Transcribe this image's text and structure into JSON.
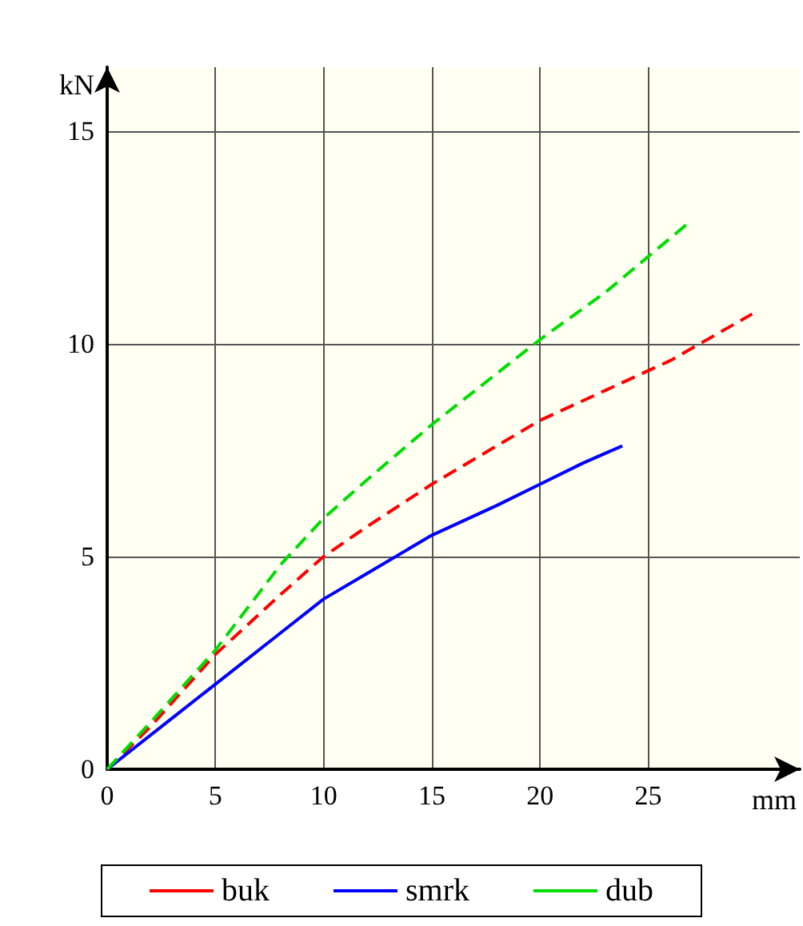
{
  "chart_data": {
    "type": "line",
    "xlabel": "mm",
    "ylabel": "kN",
    "xlim": [
      0,
      32
    ],
    "ylim": [
      0,
      16.5
    ],
    "xticks": [
      0,
      5,
      10,
      15,
      20,
      25
    ],
    "yticks": [
      0,
      5,
      10,
      15
    ],
    "grid": true,
    "legend": "bottom",
    "marker": "none",
    "series": [
      {
        "name": "buk",
        "color": "#ff0000",
        "line_style": "dashed",
        "x": [
          0,
          2,
          5,
          8,
          10,
          12,
          15,
          18,
          20,
          23,
          26,
          29.8
        ],
        "values": [
          0,
          1.0,
          2.7,
          4.1,
          5.0,
          5.7,
          6.7,
          7.6,
          8.2,
          8.9,
          9.6,
          10.7
        ]
      },
      {
        "name": "smrk",
        "color": "#0000ff",
        "line_style": "solid",
        "x": [
          0,
          3,
          5,
          8,
          10,
          12,
          15,
          18,
          20,
          22,
          23.8
        ],
        "values": [
          0,
          1.2,
          2.0,
          3.2,
          4.0,
          4.6,
          5.5,
          6.2,
          6.7,
          7.2,
          7.6
        ]
      },
      {
        "name": "dub",
        "color": "#00dd00",
        "line_style": "dashed",
        "x": [
          0,
          2,
          5,
          8,
          10,
          12,
          15,
          18,
          20,
          23,
          27
        ],
        "values": [
          0,
          1.1,
          2.8,
          4.8,
          5.9,
          6.8,
          8.1,
          9.3,
          10.1,
          11.2,
          12.9
        ]
      }
    ]
  }
}
